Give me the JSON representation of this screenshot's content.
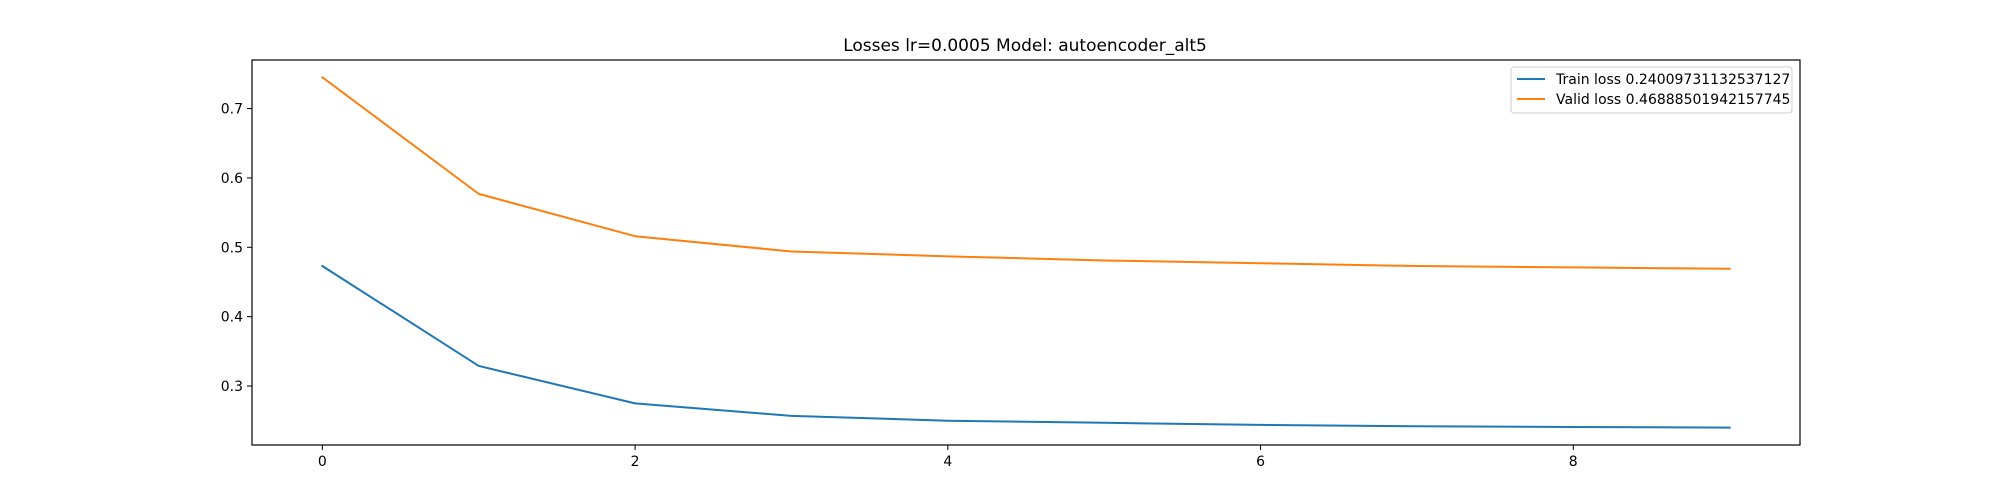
{
  "chart_data": {
    "type": "line",
    "title": "Losses lr=0.0005 Model: autoencoder_alt5",
    "xlabel": "",
    "ylabel": "",
    "xlim": [
      -0.45,
      9.45
    ],
    "ylim": [
      0.215,
      0.77
    ],
    "x_ticks": [
      0,
      2,
      4,
      6,
      8
    ],
    "y_ticks": [
      0.3,
      0.4,
      0.5,
      0.6,
      0.7
    ],
    "grid": false,
    "legend_position": "top-right",
    "x": [
      0,
      1,
      2,
      3,
      4,
      5,
      6,
      7,
      8,
      9
    ],
    "series": [
      {
        "name": "Train loss 0.24009731132537127",
        "color": "#1f77b4",
        "values": [
          0.473,
          0.329,
          0.275,
          0.257,
          0.25,
          0.247,
          0.244,
          0.242,
          0.241,
          0.24
        ]
      },
      {
        "name": "Valid loss 0.46888501942157745",
        "color": "#ff7f0e",
        "values": [
          0.745,
          0.577,
          0.516,
          0.494,
          0.487,
          0.481,
          0.477,
          0.473,
          0.471,
          0.469
        ]
      }
    ]
  }
}
